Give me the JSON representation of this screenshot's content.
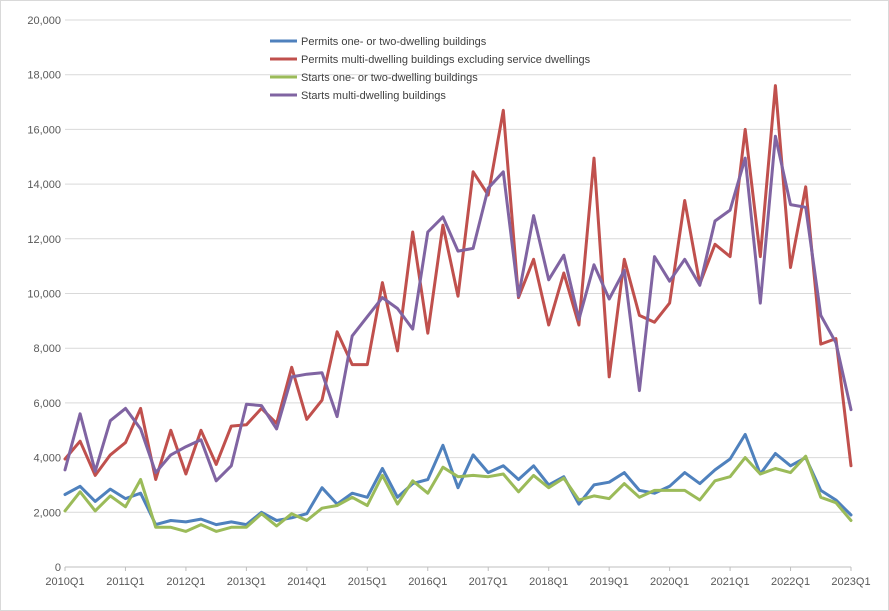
{
  "chart_data": {
    "type": "line",
    "title": "",
    "xlabel": "",
    "ylabel": "",
    "ylim": [
      0,
      20000
    ],
    "y_ticks": [
      "0",
      "2,000",
      "4,000",
      "6,000",
      "8,000",
      "10,000",
      "12,000",
      "14,000",
      "16,000",
      "18,000",
      "20,000"
    ],
    "grid": "horizontal",
    "legend_position": "top-center",
    "x": [
      "2010Q1",
      "2010Q2",
      "2010Q3",
      "2010Q4",
      "2011Q1",
      "2011Q2",
      "2011Q3",
      "2011Q4",
      "2012Q1",
      "2012Q2",
      "2012Q3",
      "2012Q4",
      "2013Q1",
      "2013Q2",
      "2013Q3",
      "2013Q4",
      "2014Q1",
      "2014Q2",
      "2014Q3",
      "2014Q4",
      "2015Q1",
      "2015Q2",
      "2015Q3",
      "2015Q4",
      "2016Q1",
      "2016Q2",
      "2016Q3",
      "2016Q4",
      "2017Q1",
      "2017Q2",
      "2017Q3",
      "2017Q4",
      "2018Q1",
      "2018Q2",
      "2018Q3",
      "2018Q4",
      "2019Q1",
      "2019Q2",
      "2019Q3",
      "2019Q4",
      "2020Q1",
      "2020Q2",
      "2020Q3",
      "2020Q4",
      "2021Q1",
      "2021Q2",
      "2021Q3",
      "2021Q4",
      "2022Q1",
      "2022Q2",
      "2022Q3",
      "2022Q4",
      "2023Q1"
    ],
    "x_tick_labels": [
      "2010Q1",
      "2011Q1",
      "2012Q1",
      "2013Q1",
      "2014Q1",
      "2015Q1",
      "2016Q1",
      "2017Q1",
      "2018Q1",
      "2019Q1",
      "2020Q1",
      "2021Q1",
      "2022Q1",
      "2023Q1"
    ],
    "series": [
      {
        "name": "Permits one- or two-dwelling buildings",
        "color": "#4f81bd",
        "values": [
          2650,
          2950,
          2400,
          2850,
          2500,
          2700,
          1550,
          1700,
          1650,
          1750,
          1550,
          1650,
          1550,
          2000,
          1700,
          1800,
          1950,
          2900,
          2300,
          2700,
          2550,
          3600,
          2550,
          3050,
          3200,
          4450,
          2900,
          4100,
          3450,
          3700,
          3200,
          3700,
          3000,
          3300,
          2300,
          3000,
          3100,
          3450,
          2800,
          2700,
          2950,
          3450,
          3050,
          3550,
          3950,
          4850,
          3400,
          4150,
          3700,
          4000,
          2800,
          2450,
          1900
        ]
      },
      {
        "name": "Permits multi-dwelling buildings excluding service dwellings",
        "color": "#c0504d",
        "values": [
          3950,
          4600,
          3350,
          4100,
          4550,
          5800,
          3200,
          5000,
          3400,
          5000,
          3750,
          5150,
          5200,
          5800,
          5250,
          7300,
          5400,
          6100,
          8600,
          7400,
          7400,
          10400,
          7900,
          12250,
          8550,
          12500,
          9900,
          14450,
          13600,
          16700,
          9850,
          11250,
          8850,
          10750,
          8850,
          14950,
          6950,
          11250,
          9200,
          8950,
          9650,
          13400,
          10350,
          11800,
          11350,
          16000,
          11350,
          17600,
          10950,
          13900,
          8150,
          8350,
          3700
        ]
      },
      {
        "name": "Starts one- or two-dwelling buildings",
        "color": "#9bbb59",
        "values": [
          2050,
          2750,
          2050,
          2600,
          2200,
          3200,
          1450,
          1450,
          1300,
          1550,
          1300,
          1450,
          1450,
          1950,
          1500,
          1950,
          1700,
          2150,
          2250,
          2550,
          2250,
          3350,
          2300,
          3150,
          2700,
          3650,
          3300,
          3350,
          3300,
          3400,
          2750,
          3350,
          2900,
          3250,
          2450,
          2600,
          2500,
          3050,
          2550,
          2800,
          2800,
          2800,
          2450,
          3150,
          3300,
          4000,
          3400,
          3600,
          3450,
          4050,
          2550,
          2350,
          1700
        ]
      },
      {
        "name": "Starts multi-dwelling buildings",
        "color": "#8064a2",
        "values": [
          3550,
          5600,
          3500,
          5350,
          5800,
          5050,
          3450,
          4100,
          4400,
          4650,
          3150,
          3700,
          5950,
          5900,
          5050,
          6950,
          7050,
          7100,
          5500,
          8450,
          9150,
          9850,
          9450,
          8700,
          12250,
          12800,
          11550,
          11650,
          13850,
          14450,
          9900,
          12850,
          10500,
          11400,
          9050,
          11050,
          9800,
          10850,
          6450,
          11350,
          10450,
          11250,
          10300,
          12650,
          13050,
          14950,
          9650,
          15750,
          13250,
          13150,
          9200,
          8200,
          5750
        ]
      }
    ]
  }
}
